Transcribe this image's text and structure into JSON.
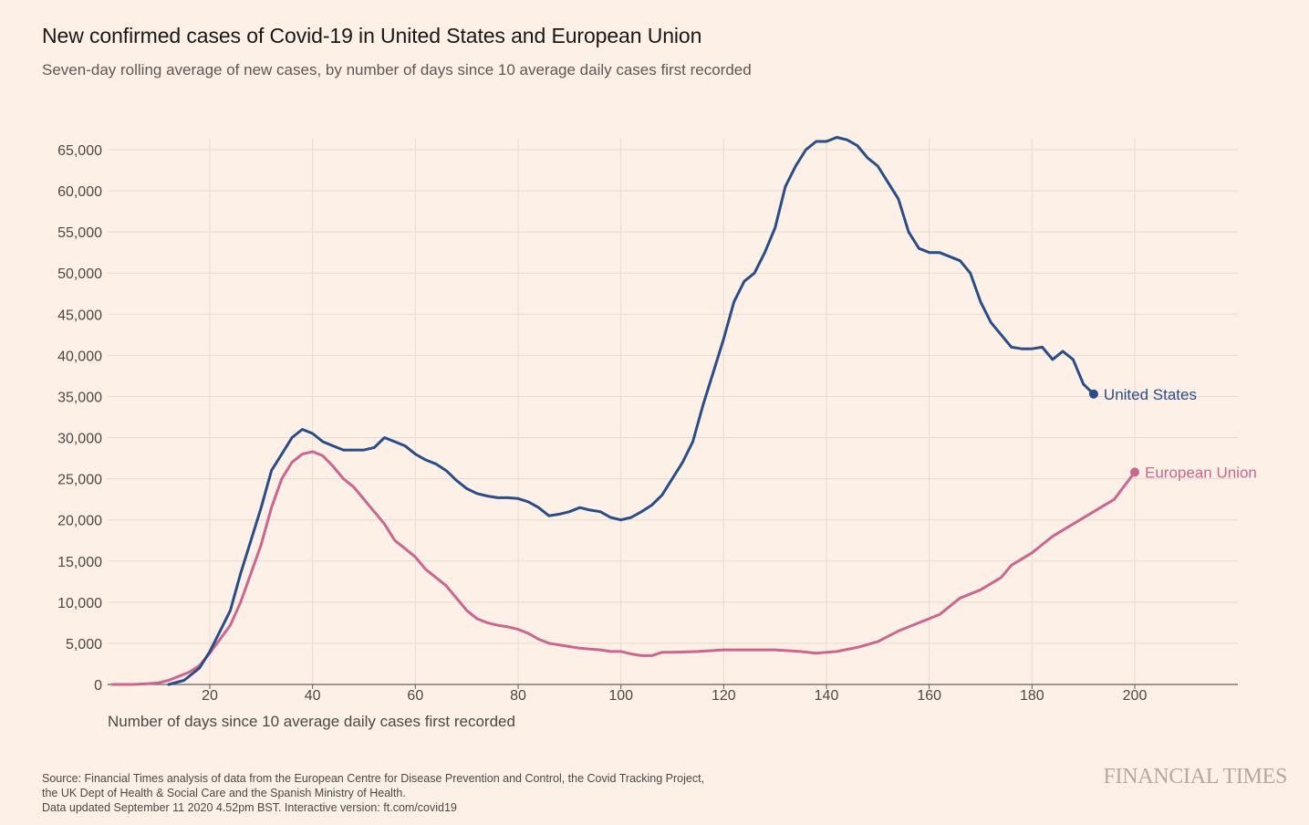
{
  "chart_data": {
    "type": "line",
    "title": "New confirmed cases of Covid-19 in United States and European Union",
    "subtitle": "Seven-day rolling average of new cases, by number of days since 10 average daily cases first recorded",
    "xlabel": "Number of days since 10 average daily cases first recorded",
    "ylabel": "",
    "xlim": [
      1,
      220
    ],
    "ylim": [
      0,
      66000
    ],
    "x_ticks": [
      20,
      40,
      60,
      80,
      100,
      120,
      140,
      160,
      180,
      200
    ],
    "x_tick_labels": [
      "20",
      "40",
      "60",
      "80",
      "100",
      "120",
      "140",
      "160",
      "180",
      "200"
    ],
    "y_ticks": [
      0,
      5000,
      10000,
      15000,
      20000,
      25000,
      30000,
      35000,
      40000,
      45000,
      50000,
      55000,
      60000,
      65000
    ],
    "y_tick_labels": [
      "0",
      "5,000",
      "10,000",
      "15,000",
      "20,000",
      "25,000",
      "30,000",
      "35,000",
      "40,000",
      "45,000",
      "50,000",
      "55,000",
      "60,000",
      "65,000"
    ],
    "grid": true,
    "legend": "direct labels at line ends",
    "series": [
      {
        "name": "United States",
        "color": "#2a4d87",
        "x": [
          12,
          15,
          18,
          20,
          22,
          24,
          26,
          28,
          30,
          32,
          34,
          36,
          38,
          40,
          42,
          44,
          46,
          48,
          50,
          52,
          54,
          56,
          58,
          60,
          62,
          64,
          66,
          68,
          70,
          72,
          74,
          76,
          78,
          80,
          82,
          84,
          86,
          88,
          90,
          92,
          94,
          96,
          98,
          100,
          102,
          104,
          106,
          108,
          110,
          112,
          114,
          116,
          118,
          120,
          122,
          124,
          126,
          128,
          130,
          132,
          134,
          136,
          138,
          140,
          142,
          144,
          146,
          148,
          150,
          152,
          154,
          156,
          158,
          160,
          162,
          164,
          166,
          168,
          170,
          172,
          174,
          176,
          178,
          180,
          182,
          184,
          186,
          188,
          190,
          192
        ],
        "values": [
          0,
          500,
          2000,
          4000,
          6500,
          9000,
          13500,
          17500,
          21500,
          26000,
          28000,
          30000,
          31000,
          30500,
          29500,
          29000,
          28500,
          28500,
          28500,
          28800,
          30000,
          29500,
          29000,
          28000,
          27300,
          26800,
          26000,
          24800,
          23800,
          23200,
          22900,
          22700,
          22700,
          22600,
          22200,
          21500,
          20500,
          20700,
          21000,
          21500,
          21200,
          21000,
          20300,
          20000,
          20300,
          21000,
          21800,
          23000,
          25000,
          27000,
          29500,
          34000,
          38000,
          42000,
          46500,
          49000,
          50000,
          52500,
          55500,
          60500,
          63000,
          65000,
          66000,
          66000,
          66500,
          66200,
          65500,
          64000,
          63000,
          61000,
          59000,
          55000,
          53000,
          52500,
          52500,
          52000,
          51500,
          50000,
          46500,
          44000,
          42500,
          41000,
          40800,
          40800,
          41000,
          39500,
          40500,
          39500,
          36500,
          35300
        ]
      },
      {
        "name": "European Union",
        "color": "#cc6690",
        "x": [
          1,
          5,
          8,
          10,
          12,
          14,
          16,
          18,
          20,
          22,
          24,
          26,
          28,
          30,
          32,
          34,
          36,
          38,
          40,
          42,
          44,
          46,
          48,
          50,
          52,
          54,
          56,
          58,
          60,
          62,
          64,
          66,
          68,
          70,
          72,
          74,
          76,
          78,
          80,
          82,
          84,
          86,
          88,
          90,
          92,
          94,
          96,
          98,
          100,
          102,
          104,
          106,
          108,
          110,
          115,
          120,
          125,
          130,
          135,
          138,
          142,
          146,
          150,
          154,
          158,
          162,
          166,
          170,
          174,
          176,
          180,
          184,
          188,
          192,
          196,
          200
        ],
        "values": [
          0,
          0,
          100,
          200,
          500,
          1000,
          1500,
          2300,
          3800,
          5500,
          7200,
          10000,
          13500,
          17000,
          21500,
          25000,
          27000,
          28000,
          28300,
          27800,
          26500,
          25000,
          24000,
          22500,
          21000,
          19500,
          17500,
          16500,
          15500,
          14000,
          13000,
          12000,
          10500,
          9000,
          8000,
          7500,
          7200,
          7000,
          6700,
          6200,
          5500,
          5000,
          4800,
          4600,
          4400,
          4300,
          4200,
          4000,
          4000,
          3700,
          3500,
          3500,
          3900,
          3900,
          4000,
          4200,
          4200,
          4200,
          4000,
          3800,
          4000,
          4500,
          5200,
          6500,
          7500,
          8500,
          10500,
          11500,
          13000,
          14500,
          16000,
          18000,
          19500,
          21000,
          22500,
          25800
        ]
      }
    ]
  },
  "footer": {
    "source_line1": "Source: Financial Times analysis of data from the European Centre for Disease Prevention and Control, the Covid Tracking Project,",
    "source_line2": "the UK Dept of Health & Social Care and the Spanish Ministry of Health.",
    "source_line3": "Data updated September 11 2020 4.52pm BST. Interactive version: ft.com/covid19",
    "brand": "FINANCIAL TIMES"
  },
  "colors": {
    "background": "#fdf0e6",
    "grid": "#e6dbd3",
    "axis": "#66605c"
  }
}
